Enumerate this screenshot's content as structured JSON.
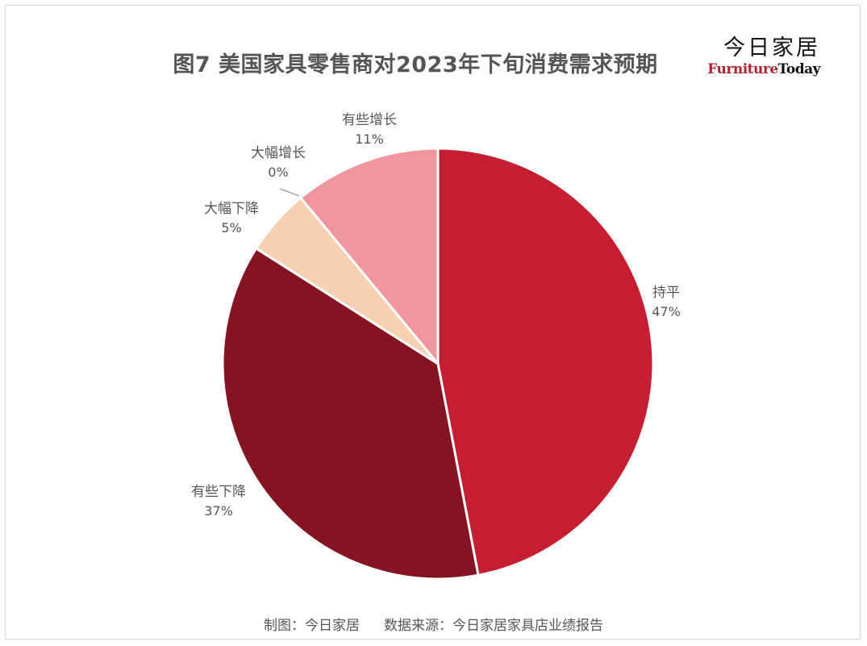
{
  "title": "图7  美国家具零售商对2023年下旬消费需求预期",
  "logo": {
    "cn": "今日家居",
    "en_part1": "Furniture",
    "en_part2": "Today"
  },
  "footer": {
    "made_by": "制图：今日家居",
    "source": "数据来源：今日家居家具店业绩报告"
  },
  "chart_data": {
    "type": "pie",
    "title": "图7  美国家具零售商对2023年下旬消费需求预期",
    "start_angle_deg": 0,
    "direction": "clockwise",
    "slices": [
      {
        "label": "持平",
        "value": 47,
        "value_label": "47%",
        "color": "#c51d31"
      },
      {
        "label": "有些下降",
        "value": 37,
        "value_label": "37%",
        "color": "#861322"
      },
      {
        "label": "大幅下降",
        "value": 5,
        "value_label": "5%",
        "color": "#f6d0b0"
      },
      {
        "label": "大幅增长",
        "value": 0,
        "value_label": "0%",
        "color": "#d3e0f0"
      },
      {
        "label": "有些增长",
        "value": 11,
        "value_label": "11%",
        "color": "#ee959d"
      }
    ]
  }
}
